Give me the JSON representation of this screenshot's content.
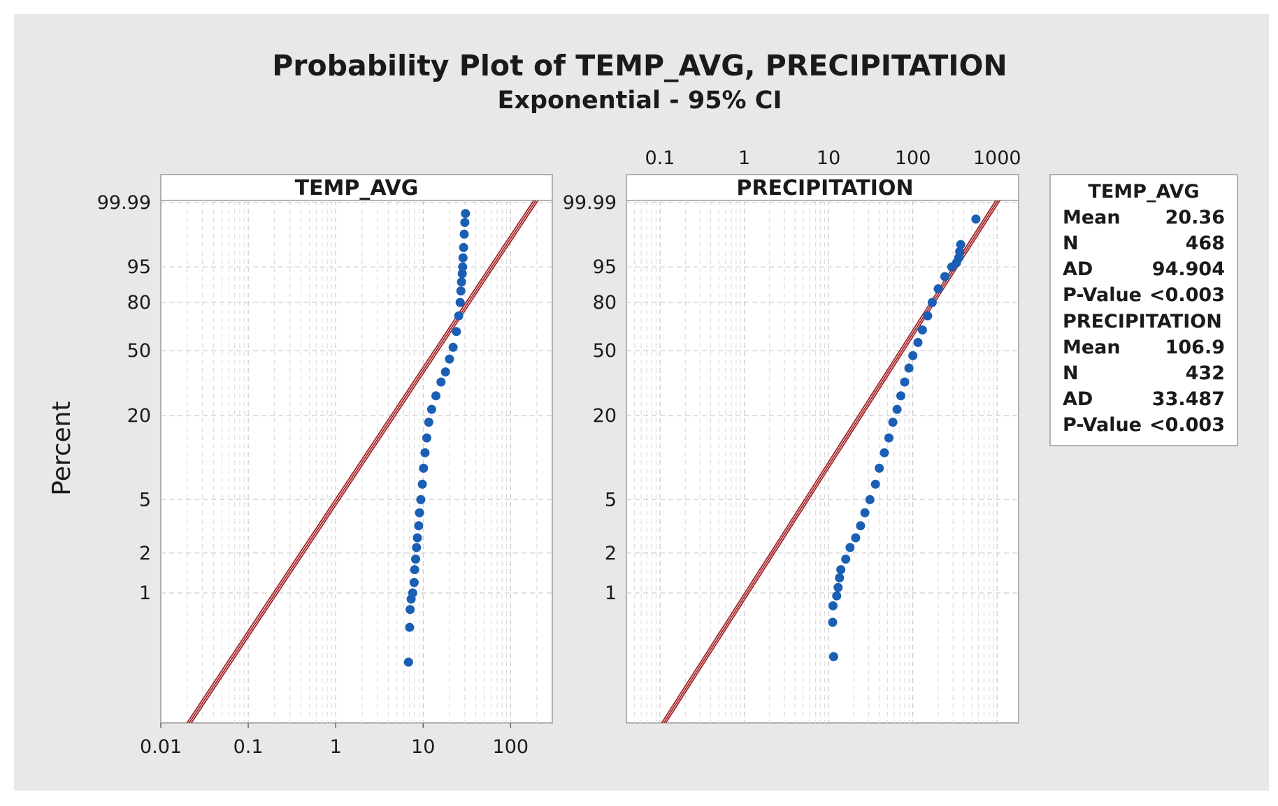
{
  "chart_data": {
    "type": "scatter",
    "title": "Probability Plot of TEMP_AVG, PRECIPITATION",
    "subtitle": "Exponential - 95% CI",
    "ylabel": "Percent",
    "y_ticks": [
      "1",
      "2",
      "5",
      "20",
      "50",
      "80",
      "95",
      "99.99"
    ],
    "colors": {
      "points": "#1a5fb4",
      "fit_line": "#a3262a",
      "background": "#e8e8e8",
      "plot_area": "#ffffff"
    },
    "panels": [
      {
        "name": "TEMP_AVG",
        "x_scale": "log",
        "xlim": [
          0.01,
          300
        ],
        "x_tick_labels": [
          "0.01",
          "0.1",
          "1",
          "10",
          "100"
        ],
        "x_axis_position": "bottom",
        "fitted_mean": 20.36,
        "points": [
          [
            6.8,
            0.3
          ],
          [
            7.0,
            0.55
          ],
          [
            7.1,
            0.75
          ],
          [
            7.3,
            0.9
          ],
          [
            7.6,
            1.0
          ],
          [
            7.9,
            1.2
          ],
          [
            8.0,
            1.5
          ],
          [
            8.2,
            1.8
          ],
          [
            8.4,
            2.2
          ],
          [
            8.6,
            2.6
          ],
          [
            8.9,
            3.2
          ],
          [
            9.1,
            4.0
          ],
          [
            9.4,
            5.0
          ],
          [
            9.8,
            6.5
          ],
          [
            10.1,
            8.5
          ],
          [
            10.5,
            11
          ],
          [
            11.0,
            14
          ],
          [
            11.6,
            18
          ],
          [
            12.5,
            22
          ],
          [
            14.0,
            27
          ],
          [
            16.0,
            33
          ],
          [
            18.0,
            38
          ],
          [
            20.0,
            45
          ],
          [
            22.0,
            52
          ],
          [
            24.0,
            62
          ],
          [
            25.5,
            72
          ],
          [
            26.5,
            80
          ],
          [
            27.0,
            86
          ],
          [
            27.5,
            90
          ],
          [
            28.0,
            93
          ],
          [
            28.3,
            95
          ],
          [
            28.6,
            97
          ],
          [
            29.0,
            98.5
          ],
          [
            29.5,
            99.5
          ],
          [
            30.0,
            99.85
          ],
          [
            30.5,
            99.95
          ]
        ]
      },
      {
        "name": "PRECIPITATION",
        "x_scale": "log",
        "xlim": [
          0.04,
          1800
        ],
        "x_tick_labels": [
          "0.1",
          "1",
          "10",
          "100",
          "1000"
        ],
        "x_axis_position": "top",
        "fitted_mean": 106.9,
        "points": [
          [
            11.5,
            0.33
          ],
          [
            11.2,
            0.6
          ],
          [
            11.3,
            0.8
          ],
          [
            12.5,
            0.95
          ],
          [
            13.0,
            1.1
          ],
          [
            13.5,
            1.3
          ],
          [
            14.0,
            1.5
          ],
          [
            16.0,
            1.8
          ],
          [
            18.0,
            2.2
          ],
          [
            21.0,
            2.6
          ],
          [
            24.0,
            3.2
          ],
          [
            27.0,
            4.0
          ],
          [
            31.0,
            5.0
          ],
          [
            36.0,
            6.5
          ],
          [
            40.0,
            8.5
          ],
          [
            46.0,
            11
          ],
          [
            52.0,
            14
          ],
          [
            58.0,
            18
          ],
          [
            65.0,
            22
          ],
          [
            72.0,
            27
          ],
          [
            80.0,
            33
          ],
          [
            90.0,
            40
          ],
          [
            100.0,
            47
          ],
          [
            115.0,
            55
          ],
          [
            130.0,
            63
          ],
          [
            150.0,
            72
          ],
          [
            170.0,
            80
          ],
          [
            200.0,
            87
          ],
          [
            240.0,
            92
          ],
          [
            290.0,
            95
          ],
          [
            330.0,
            96
          ],
          [
            350.0,
            97
          ],
          [
            360.0,
            98
          ],
          [
            370.0,
            98.8
          ],
          [
            560.0,
            99.9
          ]
        ]
      }
    ],
    "legend": {
      "position": "right",
      "groups": [
        {
          "title": "TEMP_AVG",
          "rows": [
            {
              "label": "Mean",
              "value": "20.36"
            },
            {
              "label": "N",
              "value": "468"
            },
            {
              "label": "AD",
              "value": "94.904"
            },
            {
              "label": "P-Value",
              "value": "<0.003"
            }
          ]
        },
        {
          "title": "PRECIPITATION",
          "rows": [
            {
              "label": "Mean",
              "value": "106.9"
            },
            {
              "label": "N",
              "value": "432"
            },
            {
              "label": "AD",
              "value": "33.487"
            },
            {
              "label": "P-Value",
              "value": "<0.003"
            }
          ]
        }
      ]
    }
  }
}
